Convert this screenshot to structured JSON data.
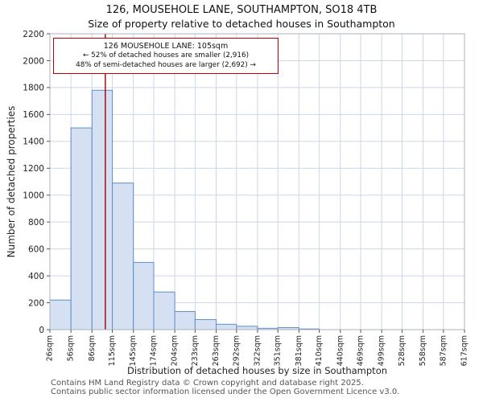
{
  "chart_data": {
    "type": "bar",
    "title": "126, MOUSEHOLE LANE, SOUTHAMPTON, SO18 4TB",
    "subtitle": "Size of property relative to detached houses in Southampton",
    "xlabel": "Distribution of detached houses by size in Southampton",
    "ylabel": "Number of detached properties",
    "categories": [
      "26sqm",
      "56sqm",
      "86sqm",
      "115sqm",
      "145sqm",
      "174sqm",
      "204sqm",
      "233sqm",
      "263sqm",
      "292sqm",
      "322sqm",
      "351sqm",
      "381sqm",
      "410sqm",
      "440sqm",
      "469sqm",
      "499sqm",
      "528sqm",
      "558sqm",
      "587sqm",
      "617sqm"
    ],
    "bin_edges_sqm": [
      26,
      56,
      86,
      115,
      145,
      174,
      204,
      233,
      263,
      292,
      322,
      351,
      381,
      410,
      440,
      469,
      499,
      528,
      558,
      587,
      617
    ],
    "values": [
      220,
      1500,
      1780,
      1090,
      500,
      280,
      135,
      75,
      40,
      25,
      10,
      15,
      5,
      0,
      0,
      0,
      0,
      0,
      0,
      0
    ],
    "ylim": [
      0,
      2200
    ],
    "ytick_step": 200,
    "grid": true,
    "legend": "none",
    "marker": {
      "value_sqm": 105,
      "color": "#990000"
    },
    "annotation": {
      "line1": "126 MOUSEHOLE LANE: 105sqm",
      "line2": "← 52% of detached houses are smaller (2,916)",
      "line3": "48% of semi-detached houses are larger (2,692) →",
      "border_color": "#bf0000"
    },
    "colors": {
      "bar_fill": "#d5e1f3",
      "bar_stroke": "#5f8dc9",
      "grid": "#ccd7e8",
      "spine": "#aab2bf",
      "tick": "#555555",
      "tick_label": "#222222"
    }
  },
  "footer": {
    "line1": "Contains HM Land Registry data © Crown copyright and database right 2025.",
    "line2": "Contains public sector information licensed under the Open Government Licence v3.0."
  }
}
